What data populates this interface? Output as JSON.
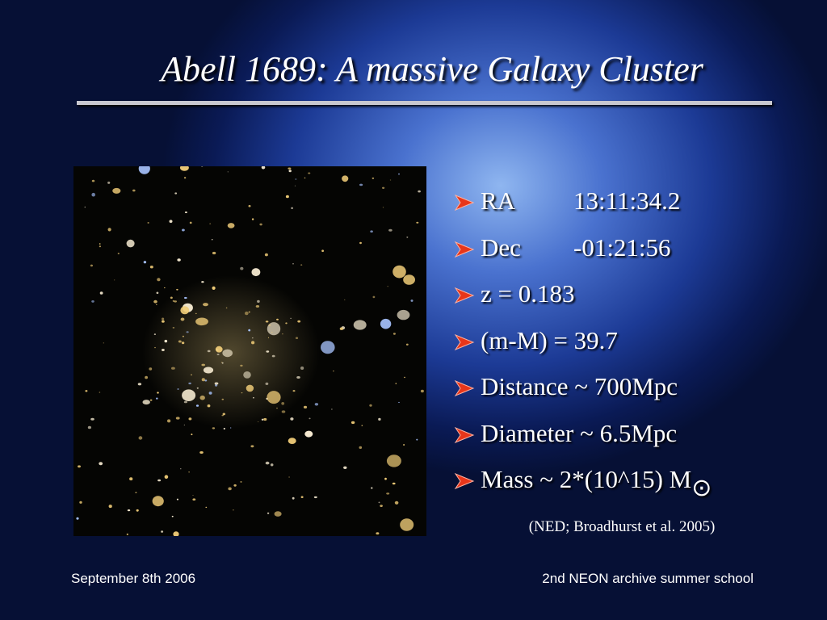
{
  "header": {
    "title": "Abell 1689: A massive Galaxy Cluster"
  },
  "bullets": [
    {
      "label": "RA",
      "value": "13:11:34.2"
    },
    {
      "label": "Dec",
      "value": "-01:21:56"
    },
    {
      "text": "z = 0.183"
    },
    {
      "text": "(m-M) = 39.7"
    },
    {
      "text": "Distance ~ 700Mpc"
    },
    {
      "text": "Diameter ~ 6.5Mpc"
    },
    {
      "text": "Mass ~ 2*(10^15) M",
      "symbol": "⊙"
    }
  ],
  "citation": "(NED; Broadhurst et al. 2005)",
  "footer": {
    "left": "September 8th 2006",
    "right": "2nd NEON archive summer school"
  }
}
